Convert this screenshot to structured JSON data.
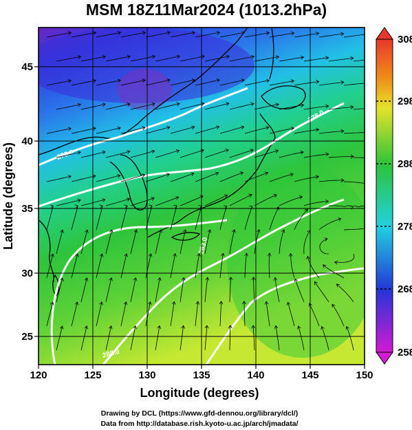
{
  "title": "MSM 18Z11Mar2024 (1013.2hPa)",
  "x_axis": {
    "label": "Longitude (degrees)",
    "ticks": [
      "120",
      "125",
      "130",
      "135",
      "140",
      "145",
      "150"
    ],
    "range": [
      120,
      150
    ]
  },
  "y_axis": {
    "label": "Latitude  (degrees)",
    "ticks": [
      "25",
      "30",
      "35",
      "40",
      "45"
    ],
    "range": [
      22.5,
      47.5
    ]
  },
  "colorbar": {
    "ticks": [
      "308",
      "298",
      "288",
      "278",
      "268",
      "258"
    ],
    "range": [
      258,
      308
    ]
  },
  "contours": {
    "labels": [
      "273.0",
      "278.0",
      "283.0",
      "288.0"
    ]
  },
  "credits": {
    "line1": "Drawing by DCL (https://www.gfd-dennou.org/library/dcl/)",
    "line2": "Data from http://database.rish.kyoto-u.ac.jp/arch/jmadata/"
  },
  "colors": {
    "cold": "#c020c0",
    "cool": "#2050e0",
    "mild": "#20d0e0",
    "warm": "#20c040",
    "hot": "#e0e030",
    "land_outline": "#000000",
    "contour": "#ffffff"
  }
}
